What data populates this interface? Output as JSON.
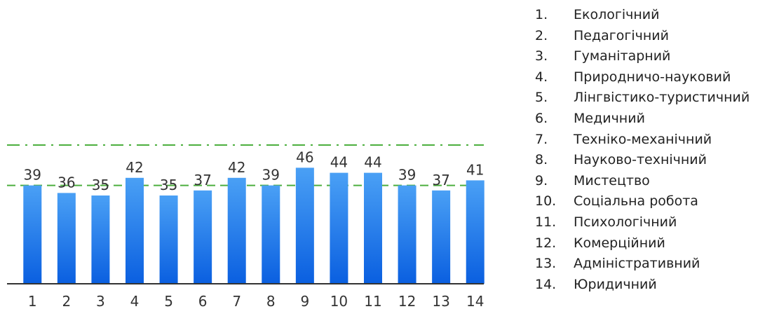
{
  "chart_data": {
    "type": "bar",
    "title": "",
    "xlabel": "",
    "ylabel": "",
    "ylim": [
      0,
      60
    ],
    "grid": false,
    "categories": [
      "1",
      "2",
      "3",
      "4",
      "5",
      "6",
      "7",
      "8",
      "9",
      "10",
      "11",
      "12",
      "13",
      "14"
    ],
    "values": [
      39,
      36,
      35,
      42,
      35,
      37,
      42,
      39,
      46,
      44,
      44,
      39,
      37,
      41
    ],
    "reference_lines": [
      {
        "value": 39,
        "style": "dashed",
        "color": "#4caf3e"
      },
      {
        "value": 55,
        "style": "dash-dot",
        "color": "#4caf3e"
      }
    ],
    "bar_gradient": {
      "top": "#4aa0f5",
      "bottom": "#0a5fe0"
    },
    "legend_position": "right",
    "legend": [
      {
        "num": "1.",
        "label": "Екологічний"
      },
      {
        "num": "2.",
        "label": "Педагогічний"
      },
      {
        "num": "3.",
        "label": "Гуманітарний"
      },
      {
        "num": "4.",
        "label": "Природничо-науковий"
      },
      {
        "num": "5.",
        "label": "Лінгвістико-туристичний"
      },
      {
        "num": "6.",
        "label": "Медичний"
      },
      {
        "num": "7.",
        "label": "Техніко-механічний"
      },
      {
        "num": "8.",
        "label": "Науково-технічний"
      },
      {
        "num": "9.",
        "label": "Мистецтво"
      },
      {
        "num": "10.",
        "label": "Соціальна робота"
      },
      {
        "num": "11.",
        "label": "Психологічний"
      },
      {
        "num": "12.",
        "label": "Комерційний"
      },
      {
        "num": "13.",
        "label": "Адміністративний"
      },
      {
        "num": "14.",
        "label": "Юридичний"
      }
    ]
  }
}
